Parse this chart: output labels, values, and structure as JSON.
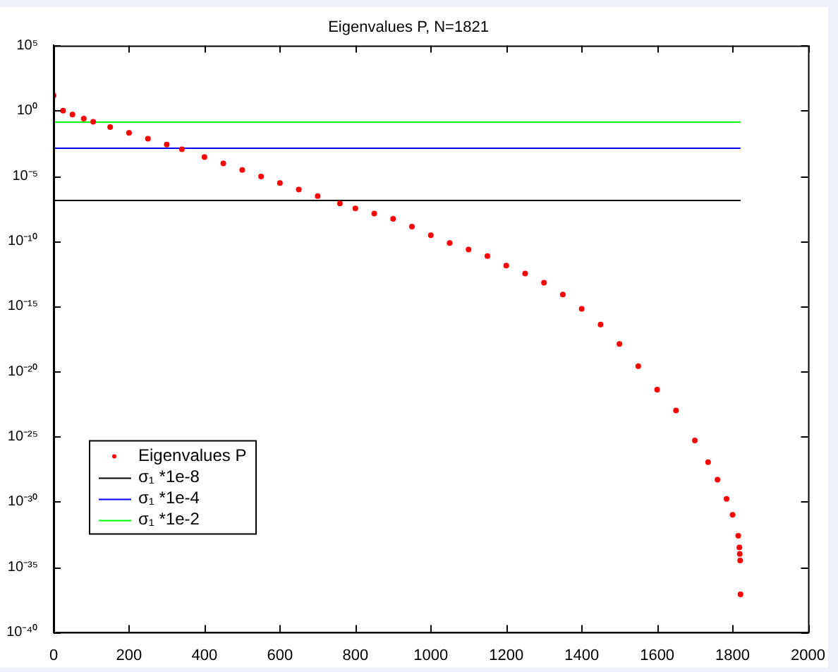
{
  "chart_data": {
    "type": "scatter",
    "title": "Eigenvalues P, N=1821",
    "log": "y",
    "grid": false,
    "legend": "bottom left",
    "xlim": [
      0,
      2000
    ],
    "xticks": [
      0,
      200,
      400,
      600,
      800,
      1000,
      1200,
      1400,
      1600,
      1800,
      2000
    ],
    "ylim": [
      1e-40,
      100000.0
    ],
    "yticks": [
      {
        "value": 100000.0,
        "label": "10⁵"
      },
      {
        "value": 1,
        "label": "10⁰"
      },
      {
        "value": 1e-05,
        "label": "10⁻⁵"
      },
      {
        "value": 1e-10,
        "label": "10⁻¹⁰"
      },
      {
        "value": 1e-15,
        "label": "10⁻¹⁵"
      },
      {
        "value": 1e-20,
        "label": "10⁻²⁰"
      },
      {
        "value": 1e-25,
        "label": "10⁻²⁵"
      },
      {
        "value": 1e-30,
        "label": "10⁻³⁰"
      },
      {
        "value": 1e-35,
        "label": "10⁻³⁵"
      },
      {
        "value": 1e-40,
        "label": "10⁻⁴⁰"
      }
    ],
    "series": [
      {
        "name": "Eigenvalues P",
        "marker": "circle",
        "color": "#ff0000",
        "x": [
          0,
          25,
          50,
          80,
          105,
          150,
          200,
          250,
          300,
          340,
          400,
          450,
          500,
          550,
          600,
          650,
          700,
          759,
          800,
          850,
          900,
          950,
          1000,
          1050,
          1100,
          1150,
          1200,
          1250,
          1300,
          1350,
          1400,
          1450,
          1500,
          1550,
          1600,
          1650,
          1700,
          1735,
          1760,
          1784,
          1800,
          1815,
          1818,
          1819,
          1820,
          1821
        ],
        "values": [
          14.5,
          1.0,
          0.5,
          0.25,
          0.14,
          0.056,
          0.02,
          0.0071,
          0.0025,
          0.0011,
          0.00028,
          8.9e-05,
          2.8e-05,
          8.9e-06,
          2.8e-06,
          8.9e-07,
          2.8e-07,
          7.6e-08,
          3.2e-08,
          1.3e-08,
          5e-09,
          1.3e-09,
          2.8e-10,
          7.1e-11,
          2.2e-11,
          7.1e-12,
          1.3e-12,
          3.2e-13,
          6.3e-14,
          7.9e-15,
          6.3e-16,
          4e-17,
          1.3e-18,
          2.5e-20,
          4e-22,
          1e-23,
          5e-26,
          1.1e-27,
          5e-29,
          1.7e-30,
          1e-31,
          2.5e-33,
          3.2e-34,
          1e-34,
          3.2e-35,
          7.9e-38
        ]
      },
      {
        "name": "σ₁ *1e-8",
        "type": "line",
        "color": "#000000",
        "x": [
          0,
          1821
        ],
        "values": [
          1.3e-07,
          1.3e-07
        ]
      },
      {
        "name": "σ₁ *1e-4",
        "type": "line",
        "color": "#0000ff",
        "x": [
          0,
          1821
        ],
        "values": [
          0.0013,
          0.0013
        ]
      },
      {
        "name": "σ₁ *1e-2",
        "type": "line",
        "color": "#00ff00",
        "x": [
          0,
          1821
        ],
        "values": [
          0.13,
          0.13
        ]
      }
    ]
  }
}
